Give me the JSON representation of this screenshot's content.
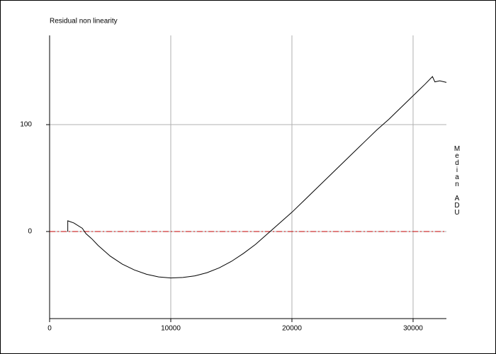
{
  "chart_data": {
    "type": "line",
    "title": "Residual non linearity",
    "y_label": "Median ADU",
    "x": [
      1500,
      1500,
      2000,
      2700,
      3000,
      3500,
      4000,
      5000,
      6000,
      7000,
      8000,
      9000,
      10000,
      11000,
      12000,
      13000,
      14000,
      15000,
      16000,
      17000,
      18000,
      19000,
      20000,
      21000,
      22000,
      23000,
      24000,
      25000,
      26000,
      27000,
      28000,
      29000,
      30000,
      31000,
      31600,
      31800,
      32200,
      32750
    ],
    "series": [
      {
        "color": "#000000",
        "values": [
          0,
          10,
          8,
          3,
          -2,
          -7,
          -13,
          -23,
          -30.5,
          -36,
          -40,
          -42.5,
          -43.5,
          -43,
          -41.5,
          -38.5,
          -34,
          -28,
          -20.5,
          -12,
          -2,
          8,
          18,
          29,
          40,
          51,
          62,
          73,
          84,
          95,
          105,
          116,
          127,
          138,
          145,
          140,
          141,
          139.5
        ]
      }
    ],
    "xlim": [
      0,
      32750
    ],
    "ylim": [
      -81.5,
      183.5
    ],
    "xticks": [
      0,
      10000,
      20000,
      30000
    ],
    "yticks": [
      0,
      100
    ],
    "grid": true,
    "reference_line": 0,
    "reference_color": "#c00000"
  }
}
